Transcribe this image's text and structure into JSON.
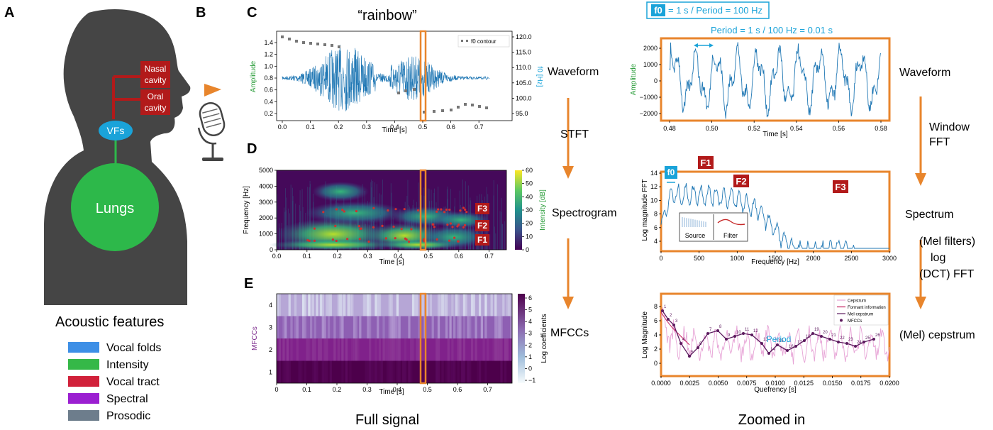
{
  "panels": {
    "A": "A",
    "B": "B",
    "C": "C",
    "D": "D",
    "E": "E"
  },
  "anatomy": {
    "nasal": [
      "Nasal",
      "cavity"
    ],
    "oral": [
      "Oral",
      "cavity"
    ],
    "vfs": "VFs",
    "lungs": "Lungs"
  },
  "legend": {
    "title": "Acoustic features",
    "items": [
      {
        "label": "Vocal folds",
        "color": "#3d8fe6"
      },
      {
        "label": "Intensity",
        "color": "#35b848"
      },
      {
        "label": "Vocal tract",
        "color": "#d1213a"
      },
      {
        "label": "Spectral",
        "color": "#9b1fd1"
      },
      {
        "label": "Prosodic",
        "color": "#6d7d8c"
      }
    ]
  },
  "colors": {
    "orange": "#e8852c",
    "blue": "#1f77b4",
    "cyan": "#1aa3d9",
    "green": "#2a9d3a",
    "red": "#b21a1a",
    "purple": "#7b2a8c"
  },
  "word": "“rainbow”",
  "waveform_full": {
    "ylabel": "Amplitude",
    "y2label": "f0 [Hz]",
    "xlabel": "Time [s]",
    "legend": "f0 contour",
    "x_ticks": [
      "0.0",
      "0.1",
      "0.2",
      "0.3",
      "0.4",
      "0.5",
      "0.6",
      "0.7"
    ],
    "y_ticks": [
      "0.2",
      "0.4",
      "0.6",
      "0.8",
      "1.0",
      "1.2",
      "1.4"
    ],
    "y2_ticks": [
      "95.0",
      "100.0",
      "105.0",
      "110.0",
      "115.0",
      "120.0"
    ]
  },
  "spectrogram": {
    "ylabel": "Frequency [Hz]",
    "xlabel": "Time [s]",
    "cbar_label": "Intensity [dB]",
    "x_ticks": [
      "0.0",
      "0.1",
      "0.2",
      "0.3",
      "0.4",
      "0.5",
      "0.6",
      "0.7"
    ],
    "y_ticks": [
      "0",
      "1000",
      "2000",
      "3000",
      "4000",
      "5000"
    ],
    "cbar_ticks": [
      "0",
      "10",
      "20",
      "30",
      "40",
      "50",
      "60"
    ],
    "formants": [
      "F1",
      "F2",
      "F3"
    ]
  },
  "mfcc": {
    "ylabel": "MFCCs",
    "xlabel": "Time [s]",
    "cbar_label": "Log coefficients",
    "x_ticks": [
      "0",
      "0.1",
      "0.2",
      "0.3",
      "0.4",
      "0.5",
      "0.6",
      "0.7"
    ],
    "y_ticks": [
      "1",
      "2",
      "3",
      "4"
    ],
    "cbar_ticks": [
      "−1",
      "0",
      "1",
      "2",
      "3",
      "4",
      "5",
      "6"
    ]
  },
  "flow_mid": {
    "waveform": "Waveform",
    "stft": "STFT",
    "spectrogram": "Spectrogram",
    "mfccs": "MFCCs"
  },
  "bottom": {
    "full": "Full signal",
    "zoomed": "Zoomed in"
  },
  "zoom_wave": {
    "f0_badge": "f0",
    "f0_text": "= 1 s / Period =  100 Hz",
    "period_text": "Period = 1 s / 100 Hz = 0.01 s",
    "ylabel": "Amplitude",
    "xlabel": "Time [s]",
    "x_ticks": [
      "0.48",
      "0.50",
      "0.52",
      "0.54",
      "0.56",
      "0.58"
    ],
    "y_ticks": [
      "−2000",
      "−1000",
      "0",
      "1000",
      "2000"
    ]
  },
  "spectrum": {
    "ylabel": "Log magnitude FFT",
    "xlabel": "Frequency [Hz]",
    "x_ticks": [
      "0",
      "500",
      "1000",
      "1500",
      "2000",
      "2500",
      "3000"
    ],
    "y_ticks": [
      "4",
      "6",
      "8",
      "10",
      "12",
      "14"
    ],
    "f0": "f0",
    "formants": [
      "F1",
      "F2",
      "F3"
    ],
    "inset": [
      "Source",
      "Filter"
    ]
  },
  "cepstrum": {
    "ylabel": "Log Magnitude",
    "xlabel": "Quefrency [s]",
    "period": "Period",
    "x_ticks": [
      "0.0000",
      "0.0025",
      "0.0050",
      "0.0075",
      "0.0100",
      "0.0125",
      "0.0150",
      "0.0175",
      "0.0200"
    ],
    "y_ticks": [
      "0",
      "2",
      "4",
      "6",
      "8"
    ],
    "legend": [
      "Cepstrum",
      "Formant information",
      "Mel-cepstrum",
      "MFCCs"
    ],
    "mfcc_indices": [
      "1",
      "2",
      "3",
      "4",
      "5",
      "6",
      "7",
      "8",
      "9",
      "10",
      "11",
      "12",
      "13",
      "14",
      "15",
      "16",
      "17",
      "18",
      "19",
      "20",
      "21",
      "22",
      "23",
      "24",
      "25",
      "26"
    ]
  },
  "flow_right": {
    "waveform": "Waveform",
    "window": "Window",
    "fft": "FFT",
    "spectrum": "Spectrum",
    "mel": "(Mel filters)",
    "log": "log",
    "dct": "(DCT) FFT",
    "cepstrum": "(Mel) cepstrum"
  }
}
